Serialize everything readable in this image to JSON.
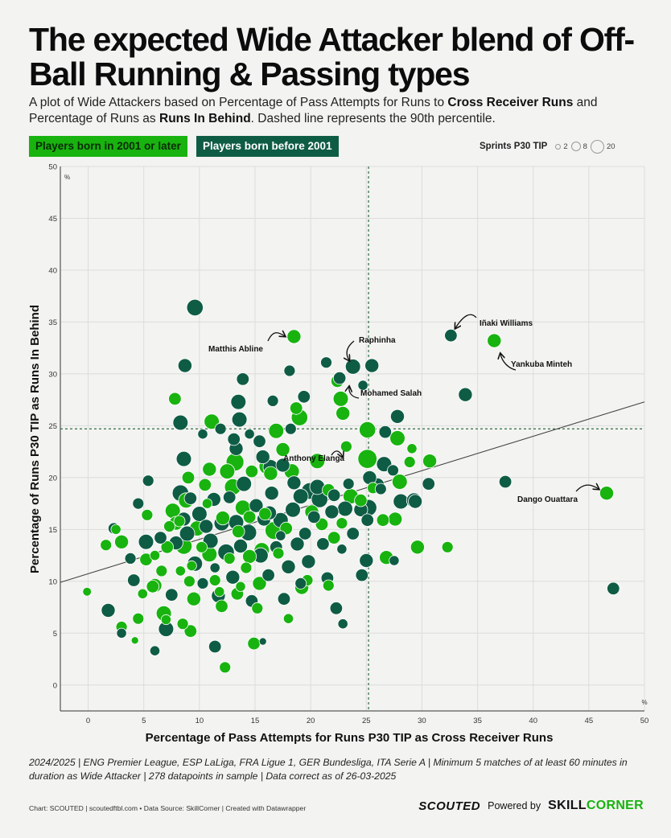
{
  "title": "The expected Wide Attacker blend of Off-Ball Running & Passing types",
  "subtitle": {
    "part1": "A plot of Wide Attackers based on Percentage of Pass Attempts for Runs to ",
    "bold1": "Cross Receiver Runs",
    "part2": " and Percentage of Runs as ",
    "bold2": "Runs In Behind",
    "part3": ". Dashed line represents the 90th percentile."
  },
  "legend": {
    "young": "Players born in 2001 or later",
    "old": "Players born before 2001",
    "size_title": "Sprints P30 TIP",
    "size_values": [
      "2",
      "8",
      "20"
    ]
  },
  "colors": {
    "young": "#18b30f",
    "old": "#0f5c45",
    "background": "#f3f3f1"
  },
  "footnote": "2024/2025 | ENG Premier League, ESP LaLiga, FRA Ligue 1, GER Bundesliga, ITA Serie A | Minimum 5 matches of at least 60 minutes in duration as Wide Attacker | 278 datapoints in sample | Data correct as of 26-03-2025",
  "credit": "Chart: SCOUTED | scoutedftbl.com • Data Source: SkillCorner | Created with Datawrapper",
  "brand": {
    "scouted": "SCOUTED",
    "powered_by": "Powered by",
    "skill": "SKILL",
    "corner": "CORNER"
  },
  "chart_data": {
    "type": "scatter",
    "xlabel": "Percentage of Pass Attempts for Runs P30 TIP as Cross Receiver Runs",
    "ylabel": "Percentage of Runs P30 TIP as Runs In Behind",
    "x_unit": "%",
    "y_unit": "%",
    "xlim": [
      -2.5,
      50
    ],
    "ylim": [
      -2.5,
      50
    ],
    "xticks": [
      0,
      5,
      10,
      15,
      20,
      25,
      30,
      35,
      40,
      45,
      50
    ],
    "yticks": [
      0,
      5,
      10,
      15,
      20,
      25,
      30,
      35,
      40,
      45,
      50
    ],
    "grid": true,
    "percentile_90": {
      "x": 25.2,
      "y": 24.7
    },
    "trendline": {
      "start": [
        -2.5,
        9.9
      ],
      "end": [
        50,
        27.3
      ]
    },
    "series": [
      {
        "name": "Players born in 2001 or later",
        "color": "#18b30f",
        "points": [
          [
            -0.1,
            9.0,
            4
          ],
          [
            1.6,
            13.5,
            6
          ],
          [
            2.5,
            15.0,
            5
          ],
          [
            3.0,
            13.8,
            8
          ],
          [
            3.0,
            5.6,
            6
          ],
          [
            4.2,
            4.3,
            3
          ],
          [
            4.5,
            6.4,
            6
          ],
          [
            5.2,
            12.1,
            7
          ],
          [
            5.3,
            16.4,
            6
          ],
          [
            4.9,
            8.8,
            5
          ],
          [
            5.8,
            9.5,
            7
          ],
          [
            6.0,
            9.6,
            8
          ],
          [
            6.6,
            11.0,
            6
          ],
          [
            6.8,
            6.9,
            9
          ],
          [
            7.0,
            6.3,
            5
          ],
          [
            7.1,
            13.3,
            7
          ],
          [
            7.3,
            15.3,
            6
          ],
          [
            7.6,
            16.8,
            9
          ],
          [
            7.8,
            27.6,
            7
          ],
          [
            7.9,
            15.6,
            8
          ],
          [
            8.2,
            15.8,
            6
          ],
          [
            8.3,
            11.0,
            5
          ],
          [
            8.5,
            5.9,
            6
          ],
          [
            8.6,
            13.4,
            10
          ],
          [
            8.8,
            17.8,
            9
          ],
          [
            9.0,
            20.0,
            7
          ],
          [
            9.1,
            10.0,
            6
          ],
          [
            9.2,
            5.2,
            7
          ],
          [
            9.3,
            11.5,
            5
          ],
          [
            9.5,
            8.3,
            8
          ],
          [
            9.8,
            15.1,
            9
          ],
          [
            10.2,
            13.3,
            6
          ],
          [
            10.5,
            19.3,
            7
          ],
          [
            10.7,
            17.5,
            5
          ],
          [
            10.9,
            20.8,
            8
          ],
          [
            11.1,
            25.4,
            9
          ],
          [
            11.4,
            10.1,
            6
          ],
          [
            11.8,
            9.0,
            5
          ],
          [
            12.0,
            7.6,
            7
          ],
          [
            12.1,
            16.1,
            8
          ],
          [
            12.3,
            1.7,
            6
          ],
          [
            12.5,
            20.6,
            9
          ],
          [
            12.7,
            12.2,
            6
          ],
          [
            13.0,
            19.1,
            10
          ],
          [
            13.2,
            21.5,
            11
          ],
          [
            13.4,
            8.8,
            7
          ],
          [
            13.5,
            14.8,
            7
          ],
          [
            13.7,
            9.5,
            5
          ],
          [
            13.9,
            17.1,
            9
          ],
          [
            14.2,
            11.3,
            6
          ],
          [
            14.5,
            12.4,
            8
          ],
          [
            14.7,
            20.6,
            7
          ],
          [
            14.9,
            4.0,
            7
          ],
          [
            15.2,
            7.4,
            6
          ],
          [
            15.4,
            9.8,
            8
          ],
          [
            15.6,
            13.0,
            9
          ],
          [
            15.9,
            16.5,
            7
          ],
          [
            16.1,
            21.1,
            10
          ],
          [
            16.4,
            20.4,
            8
          ],
          [
            16.7,
            14.9,
            11
          ],
          [
            16.9,
            24.5,
            9
          ],
          [
            17.1,
            12.7,
            6
          ],
          [
            17.5,
            22.7,
            8
          ],
          [
            17.8,
            15.1,
            7
          ],
          [
            18.0,
            6.4,
            5
          ],
          [
            18.3,
            20.6,
            9
          ],
          [
            18.5,
            33.6,
            8
          ],
          [
            18.7,
            26.7,
            7
          ],
          [
            19.0,
            25.8,
            10
          ],
          [
            19.2,
            9.4,
            8
          ],
          [
            19.7,
            10.1,
            6
          ],
          [
            20.1,
            16.7,
            8
          ],
          [
            20.6,
            21.6,
            9
          ],
          [
            21.0,
            15.5,
            7
          ],
          [
            21.6,
            9.6,
            6
          ],
          [
            22.1,
            14.2,
            7
          ],
          [
            22.4,
            29.3,
            7
          ],
          [
            22.7,
            27.6,
            9
          ],
          [
            22.9,
            26.2,
            8
          ],
          [
            22.8,
            15.6,
            6
          ],
          [
            23.2,
            23.0,
            6
          ],
          [
            23.6,
            18.2,
            9
          ],
          [
            24.5,
            17.8,
            7
          ],
          [
            25.1,
            24.6,
            10
          ],
          [
            25.1,
            21.8,
            12
          ],
          [
            25.6,
            19.0,
            6
          ],
          [
            26.5,
            15.9,
            7
          ],
          [
            26.8,
            12.3,
            8
          ],
          [
            27.6,
            16.0,
            8
          ],
          [
            27.8,
            23.8,
            9
          ],
          [
            28.0,
            19.6,
            9
          ],
          [
            28.9,
            21.5,
            6
          ],
          [
            29.1,
            22.8,
            5
          ],
          [
            29.6,
            13.3,
            8
          ],
          [
            30.7,
            21.6,
            8
          ],
          [
            32.3,
            13.3,
            6
          ],
          [
            36.5,
            33.2,
            8
          ],
          [
            46.6,
            18.5,
            8
          ],
          [
            21.6,
            18.8,
            7
          ],
          [
            14.5,
            16.2,
            7
          ],
          [
            10.9,
            12.6,
            9
          ],
          [
            6.0,
            12.5,
            5
          ]
        ]
      },
      {
        "name": "Players born before 2001",
        "color": "#0f5c45",
        "points": [
          [
            9.6,
            36.4,
            10
          ],
          [
            8.7,
            30.8,
            8
          ],
          [
            18.1,
            30.3,
            6
          ],
          [
            13.9,
            29.5,
            7
          ],
          [
            19.4,
            27.8,
            7
          ],
          [
            13.5,
            27.3,
            9
          ],
          [
            16.6,
            27.4,
            6
          ],
          [
            8.3,
            25.3,
            9
          ],
          [
            13.6,
            25.6,
            9
          ],
          [
            11.9,
            24.7,
            6
          ],
          [
            15.4,
            23.5,
            7
          ],
          [
            18.2,
            24.7,
            6
          ],
          [
            8.6,
            21.8,
            9
          ],
          [
            13.3,
            22.8,
            8
          ],
          [
            15.7,
            22.0,
            8
          ],
          [
            16.4,
            21.0,
            9
          ],
          [
            17.5,
            21.2,
            8
          ],
          [
            18.5,
            19.5,
            8
          ],
          [
            19.9,
            18.7,
            10
          ],
          [
            20.8,
            17.9,
            10
          ],
          [
            22.1,
            18.3,
            7
          ],
          [
            23.1,
            17.0,
            9
          ],
          [
            23.4,
            19.4,
            6
          ],
          [
            24.5,
            16.9,
            8
          ],
          [
            25.2,
            17.1,
            10
          ],
          [
            26.0,
            19.3,
            8
          ],
          [
            26.6,
            21.3,
            9
          ],
          [
            27.4,
            20.7,
            6
          ],
          [
            28.1,
            17.7,
            9
          ],
          [
            29.4,
            17.7,
            8
          ],
          [
            30.6,
            19.4,
            7
          ],
          [
            33.9,
            28.0,
            8
          ],
          [
            37.5,
            19.6,
            7
          ],
          [
            47.2,
            9.3,
            7
          ],
          [
            32.6,
            33.7,
            7
          ],
          [
            23.8,
            30.7,
            9
          ],
          [
            24.7,
            28.9,
            5
          ],
          [
            25.5,
            30.8,
            8
          ],
          [
            21.4,
            31.1,
            6
          ],
          [
            22.6,
            29.6,
            7
          ],
          [
            27.8,
            25.9,
            8
          ],
          [
            26.7,
            24.4,
            7
          ],
          [
            1.8,
            7.2,
            8
          ],
          [
            2.3,
            15.1,
            6
          ],
          [
            3.0,
            5.0,
            5
          ],
          [
            3.8,
            12.2,
            6
          ],
          [
            4.1,
            10.1,
            7
          ],
          [
            4.5,
            17.5,
            6
          ],
          [
            5.2,
            13.8,
            9
          ],
          [
            5.4,
            19.7,
            6
          ],
          [
            6.0,
            3.3,
            5
          ],
          [
            6.5,
            14.2,
            7
          ],
          [
            7.0,
            5.4,
            9
          ],
          [
            7.5,
            8.7,
            7
          ],
          [
            7.9,
            13.7,
            8
          ],
          [
            8.3,
            18.5,
            10
          ],
          [
            8.6,
            16.0,
            8
          ],
          [
            8.9,
            14.6,
            9
          ],
          [
            9.2,
            18.0,
            7
          ],
          [
            9.6,
            11.7,
            9
          ],
          [
            10.0,
            16.5,
            9
          ],
          [
            10.3,
            9.8,
            6
          ],
          [
            10.6,
            15.3,
            8
          ],
          [
            11.0,
            13.9,
            9
          ],
          [
            11.3,
            17.9,
            8
          ],
          [
            11.4,
            3.7,
            7
          ],
          [
            11.7,
            8.6,
            8
          ],
          [
            12.0,
            15.6,
            9
          ],
          [
            12.4,
            12.8,
            10
          ],
          [
            12.7,
            18.1,
            7
          ],
          [
            13.0,
            10.4,
            8
          ],
          [
            13.3,
            15.7,
            9
          ],
          [
            13.7,
            13.4,
            8
          ],
          [
            14.0,
            19.4,
            9
          ],
          [
            14.4,
            14.7,
            10
          ],
          [
            14.7,
            8.1,
            7
          ],
          [
            15.1,
            17.3,
            8
          ],
          [
            15.5,
            12.5,
            9
          ],
          [
            15.8,
            16.0,
            8
          ],
          [
            16.2,
            10.6,
            7
          ],
          [
            16.5,
            18.5,
            8
          ],
          [
            16.9,
            13.3,
            7
          ],
          [
            17.3,
            15.9,
            9
          ],
          [
            17.6,
            8.3,
            7
          ],
          [
            18.0,
            11.4,
            8
          ],
          [
            18.4,
            16.9,
            9
          ],
          [
            18.8,
            13.6,
            8
          ],
          [
            19.1,
            18.2,
            9
          ],
          [
            19.5,
            14.6,
            7
          ],
          [
            19.8,
            11.9,
            8
          ],
          [
            20.3,
            16.2,
            7
          ],
          [
            20.6,
            19.1,
            9
          ],
          [
            21.1,
            13.6,
            7
          ],
          [
            21.5,
            10.3,
            7
          ],
          [
            21.9,
            16.7,
            8
          ],
          [
            22.3,
            7.4,
            7
          ],
          [
            22.8,
            13.1,
            5
          ],
          [
            22.9,
            5.9,
            5
          ],
          [
            23.8,
            14.6,
            7
          ],
          [
            24.6,
            10.6,
            7
          ],
          [
            25.0,
            12.0,
            8
          ],
          [
            25.1,
            15.9,
            7
          ],
          [
            25.3,
            20.0,
            8
          ],
          [
            26.3,
            18.9,
            6
          ],
          [
            27.5,
            12.0,
            5
          ],
          [
            29.3,
            17.8,
            9
          ],
          [
            13.1,
            23.7,
            7
          ],
          [
            15.7,
            4.2,
            3
          ],
          [
            16.3,
            16.6,
            8
          ],
          [
            19.1,
            9.8,
            6
          ],
          [
            10.3,
            24.2,
            5
          ],
          [
            11.4,
            11.3,
            5
          ],
          [
            14.5,
            24.2,
            5
          ],
          [
            17.3,
            14.4,
            5
          ]
        ]
      }
    ],
    "annotations": [
      {
        "label": "Iñaki Williams",
        "point": [
          32.6,
          33.7
        ]
      },
      {
        "label": "Matthis Abline",
        "point": [
          18.5,
          33.6
        ]
      },
      {
        "label": "Raphinha",
        "point": [
          23.8,
          30.7
        ]
      },
      {
        "label": "Yankuba Minteh",
        "point": [
          36.5,
          33.2
        ]
      },
      {
        "label": "Mohamed Salah",
        "point": [
          22.7,
          27.6
        ]
      },
      {
        "label": "Anthony Elanga",
        "point": [
          25.1,
          21.8
        ]
      },
      {
        "label": "Dango Ouattara",
        "point": [
          46.6,
          18.5
        ]
      }
    ]
  }
}
